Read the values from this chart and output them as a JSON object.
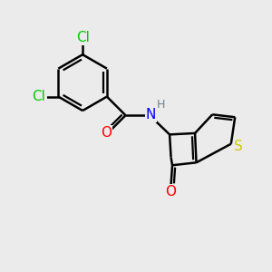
{
  "background_color": "#ebebeb",
  "atom_colors": {
    "C": "#000000",
    "Cl": "#00cc00",
    "N": "#0000ff",
    "O": "#ff0000",
    "S": "#cccc00",
    "H": "#708090"
  },
  "bond_color": "#000000",
  "bond_lw": 1.8,
  "font_size_atom": 11,
  "font_size_small": 9
}
